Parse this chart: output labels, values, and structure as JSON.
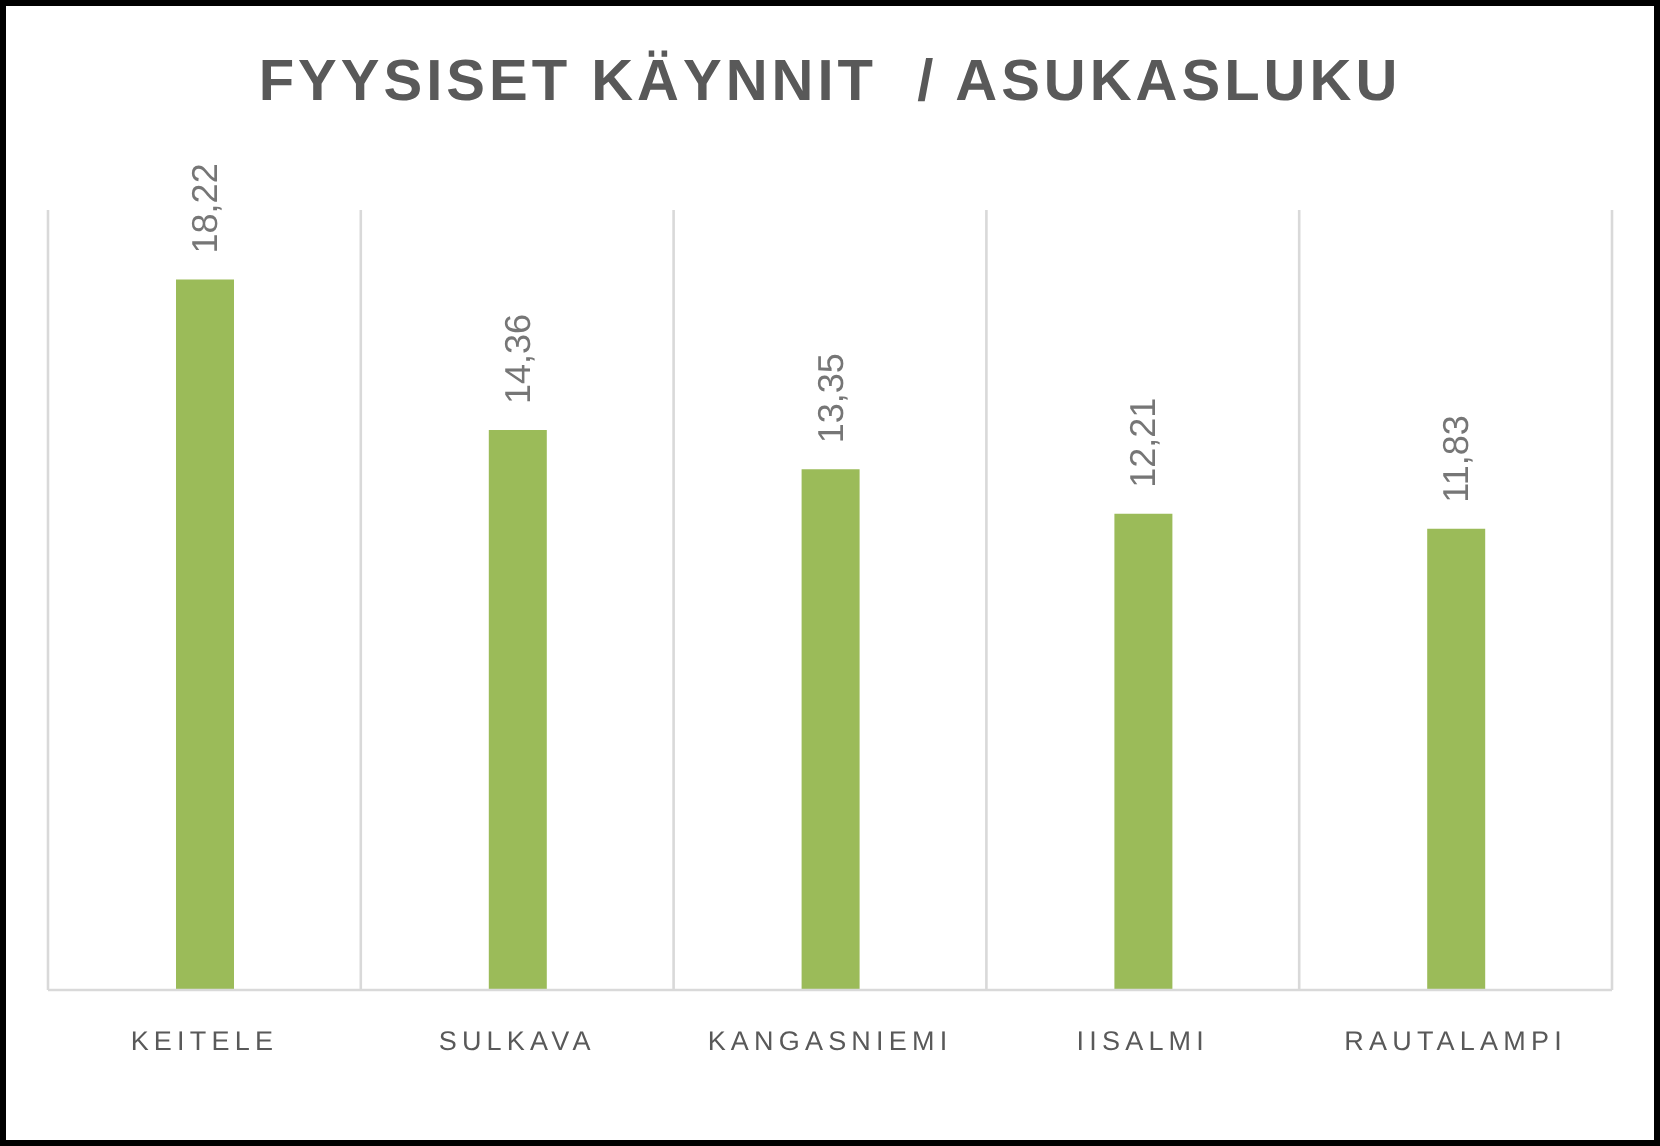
{
  "chart_data": {
    "type": "bar",
    "title": "FYYSISET KÄYNNIT  / ASUKASLUKU",
    "categories": [
      "KEITELE",
      "SULKAVA",
      "KANGASNIEMI",
      "IISALMI",
      "RAUTALAMPI"
    ],
    "values": [
      18.22,
      14.36,
      13.35,
      12.21,
      11.83
    ],
    "value_labels": [
      "18,22",
      "14,36",
      "13,35",
      "12,21",
      "11,83"
    ],
    "color": "#9bbb59",
    "grid": "x"
  }
}
